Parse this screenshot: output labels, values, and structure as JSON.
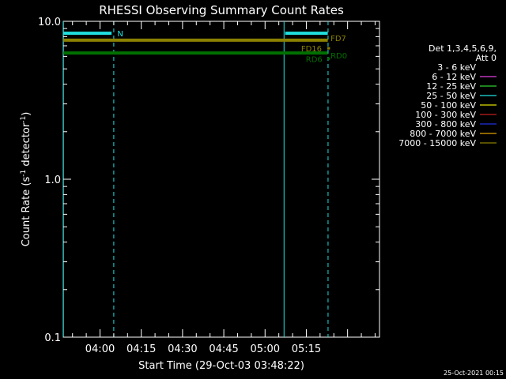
{
  "chart_data": {
    "type": "line",
    "title": "RHESSI Observing Summary Count Rates",
    "xlabel": "Start Time (29-Oct-03 03:48:22)",
    "ylabel_main": "Count Rate (s",
    "ylabel_sup1": "-1",
    "ylabel_mid": " detector",
    "ylabel_sup2": "-1",
    "ylabel_end": ")",
    "yscale": "log",
    "ylim": [
      0.1,
      10.0
    ],
    "xlim_minutes": [
      -13.3667,
      101.6
    ],
    "y_ticks": [
      {
        "value": 0.1,
        "label": "0.1"
      },
      {
        "value": 1.0,
        "label": "1.0"
      },
      {
        "value": 10.0,
        "label": "10.0"
      }
    ],
    "x_ticks": [
      {
        "value": 0,
        "label": "04:00"
      },
      {
        "value": 15,
        "label": "04:15"
      },
      {
        "value": 30,
        "label": "04:30"
      },
      {
        "value": 45,
        "label": "04:45"
      },
      {
        "value": 60,
        "label": "05:00"
      },
      {
        "value": 75,
        "label": "05:15"
      }
    ],
    "legend_header": [
      "Det 1,3,4,5,6,9,",
      "Att 0"
    ],
    "legend": [
      {
        "label": "3 - 6 keV",
        "color": "#000000"
      },
      {
        "label": "6 - 12 keV",
        "color": "#e040e0"
      },
      {
        "label": "12 - 25 keV",
        "color": "#30d030"
      },
      {
        "label": "25 - 50 keV",
        "color": "#20e0e0"
      },
      {
        "label": "50 - 100 keV",
        "color": "#e0e000"
      },
      {
        "label": "100 - 300 keV",
        "color": "#c02020"
      },
      {
        "label": "300 - 800 keV",
        "color": "#2030e0"
      },
      {
        "label": "800 - 7000 keV",
        "color": "#e0a000"
      },
      {
        "label": "7000 - 15000 keV",
        "color": "#8b8000"
      }
    ],
    "series": [
      {
        "name": "25 - 50 keV",
        "color": "#20e0e0",
        "segments": [
          {
            "x": [
              -13.3,
              4.2
            ],
            "y": 8.4
          },
          {
            "x": [
              67.3,
              82.8
            ],
            "y": 8.4
          }
        ]
      },
      {
        "name": "7000 - 15000 keV",
        "color": "#8b8000",
        "segments": [
          {
            "x": [
              -13.3,
              82.8
            ],
            "y": 7.6
          }
        ]
      },
      {
        "name": "12 - 25 keV",
        "color": "#007000",
        "segments": [
          {
            "x": [
              -13.3,
              82.8
            ],
            "y": 6.3
          }
        ]
      }
    ],
    "markers": [
      {
        "x": [
          82.6,
          83.6
        ],
        "y": 6.75,
        "color": "#8b8000"
      },
      {
        "x": [
          82.6,
          83.6
        ],
        "y": 5.8,
        "color": "#007000"
      }
    ],
    "vlines": [
      {
        "x": -13.3,
        "style": "solid",
        "color": "#20e0e0"
      },
      {
        "x": 5.0,
        "style": "dashed",
        "color": "#20e0e0"
      },
      {
        "x": 66.9,
        "style": "solid",
        "color": "#20e0e0"
      },
      {
        "x": 82.9,
        "style": "dashed",
        "color": "#20e0e0"
      }
    ],
    "annotations": [
      {
        "text": "N",
        "x": 6.3,
        "y": 8.4,
        "color": "#20e0e0"
      },
      {
        "text": "FD7",
        "x": 83.8,
        "y": 7.85,
        "color": "#8b8000"
      },
      {
        "text": "FD16",
        "x": 73.1,
        "y": 6.75,
        "color": "#8b8000"
      },
      {
        "text": "RD0",
        "x": 83.8,
        "y": 6.1,
        "color": "#007000"
      },
      {
        "text": "RD6",
        "x": 74.8,
        "y": 5.8,
        "color": "#007000"
      }
    ],
    "timestamp": "25-Oct-2021 00:15"
  }
}
